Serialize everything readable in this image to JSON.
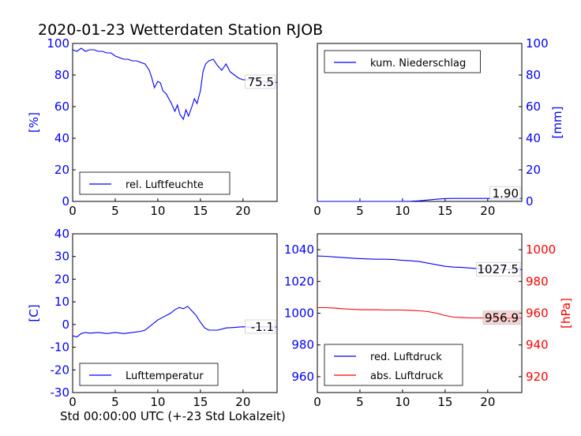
{
  "figure": {
    "title": "2020-01-23 Wetterdaten Station RJOB",
    "xlabel": "Std 00:00:00 UTC (+-23 Std Lokalzeit)"
  },
  "colors": {
    "blue": "#0000ff",
    "red": "#ff0000",
    "black": "#000000"
  },
  "chart_data": [
    {
      "type": "line",
      "panel": "top-left",
      "ylabel": "[%]",
      "xlim": [
        0,
        24
      ],
      "ylim": [
        0,
        100
      ],
      "xticks": [
        0,
        5,
        10,
        15,
        20
      ],
      "yticks": [
        0,
        20,
        40,
        60,
        80,
        100
      ],
      "legend": "bottom-left",
      "last_value": "75.5",
      "series": [
        {
          "name": "rel. Luftfeuchte",
          "color": "#0000ff",
          "x": [
            0,
            0.5,
            1,
            1.5,
            2,
            2.5,
            3,
            3.5,
            4,
            4.5,
            5,
            5.5,
            6,
            6.5,
            7,
            7.5,
            8,
            8.5,
            9,
            9.3,
            9.6,
            10,
            10.3,
            10.6,
            11,
            11.3,
            11.6,
            12,
            12.3,
            12.6,
            13,
            13.3,
            13.6,
            14,
            14.3,
            14.6,
            15,
            15.3,
            15.6,
            16,
            16.5,
            17,
            17.5,
            18,
            18.5,
            19,
            19.5,
            20,
            20.5,
            21,
            21.5,
            22,
            22.5,
            23,
            23.5,
            24
          ],
          "y": [
            96,
            95,
            97,
            95,
            96,
            96,
            95,
            95,
            94,
            94,
            92,
            91,
            90,
            90,
            89,
            89,
            88,
            87,
            83,
            78,
            72,
            76,
            75,
            70,
            68,
            65,
            62,
            57,
            61,
            55,
            52,
            58,
            54,
            60,
            65,
            62,
            70,
            82,
            87,
            89,
            90,
            86,
            83,
            87,
            82,
            80,
            78,
            77,
            77,
            77,
            78,
            76,
            76,
            75,
            75,
            75.5
          ]
        }
      ]
    },
    {
      "type": "line",
      "panel": "top-right",
      "ylabel": "[mm]",
      "y_axis_side": "right",
      "xlim": [
        0,
        24
      ],
      "ylim": [
        0,
        100
      ],
      "xticks": [
        0,
        5,
        10,
        15,
        20
      ],
      "yticks": [
        0,
        20,
        40,
        60,
        80,
        100
      ],
      "legend": "top-left",
      "last_value": "1.90",
      "series": [
        {
          "name": "kum. Niederschlag",
          "color": "#0000ff",
          "x": [
            0,
            10,
            11,
            12,
            13,
            14,
            15,
            16,
            20,
            24
          ],
          "y": [
            0,
            0,
            0.1,
            0.4,
            0.9,
            1.4,
            1.8,
            1.9,
            1.9,
            1.9
          ]
        }
      ]
    },
    {
      "type": "line",
      "panel": "bottom-left",
      "ylabel": "[C]",
      "xlim": [
        0,
        24
      ],
      "ylim": [
        -30,
        40
      ],
      "xticks": [
        0,
        5,
        10,
        15,
        20
      ],
      "yticks": [
        -30,
        -20,
        -10,
        0,
        10,
        20,
        30,
        40
      ],
      "legend": "bottom-left",
      "last_value": "-1.1",
      "series": [
        {
          "name": "Lufttemperatur",
          "color": "#0000ff",
          "x": [
            0,
            0.5,
            1,
            1.5,
            2,
            3,
            4,
            5,
            6,
            7,
            8,
            8.5,
            9,
            9.5,
            10,
            10.5,
            11,
            11.5,
            12,
            12.5,
            13,
            13.5,
            14,
            14.5,
            15,
            15.5,
            16,
            17,
            18,
            19,
            20,
            21,
            22,
            23,
            24
          ],
          "y": [
            -5,
            -5.5,
            -4,
            -3.5,
            -3.8,
            -3.5,
            -4,
            -3.5,
            -4,
            -3.5,
            -3,
            -2.5,
            -1,
            0.5,
            2,
            3,
            4,
            5,
            6.5,
            7.5,
            7,
            8,
            6,
            4,
            1,
            -1.5,
            -2.5,
            -2.5,
            -1.5,
            -1.3,
            -1,
            -1.2,
            -1,
            -1.1,
            -1.1
          ]
        }
      ]
    },
    {
      "type": "line",
      "panel": "bottom-right",
      "ylabel": "[hPa]",
      "xlim": [
        0,
        24
      ],
      "ylim_left": [
        950,
        1050
      ],
      "ylim_right": [
        910,
        1010
      ],
      "xticks": [
        0,
        5,
        10,
        15,
        20
      ],
      "yticks_left": [
        960,
        980,
        1000,
        1020,
        1040
      ],
      "yticks_right": [
        920,
        940,
        960,
        980,
        1000
      ],
      "legend": "bottom-left",
      "series": [
        {
          "name": "red. Luftdruck",
          "color": "#0000ff",
          "axis": "left",
          "last_value": "1027.5",
          "x": [
            0,
            1,
            2,
            3,
            4,
            5,
            6,
            7,
            8,
            9,
            10,
            11,
            12,
            13,
            14,
            15,
            16,
            17,
            18,
            19,
            20,
            21,
            22,
            23,
            24
          ],
          "y": [
            1036,
            1035.8,
            1035.4,
            1035,
            1034.7,
            1034.4,
            1034.2,
            1034,
            1034,
            1033.8,
            1033.3,
            1033,
            1032.5,
            1031.5,
            1030.5,
            1029.5,
            1029,
            1028.8,
            1028.4,
            1028,
            1027.8,
            1027.6,
            1027.5,
            1027.5,
            1027.5
          ]
        },
        {
          "name": "abs. Luftdruck",
          "color": "#ff0000",
          "axis": "right",
          "last_value": "956.9",
          "x": [
            0,
            1,
            2,
            3,
            4,
            5,
            6,
            7,
            8,
            9,
            10,
            11,
            12,
            13,
            14,
            15,
            16,
            17,
            18,
            19,
            20,
            21,
            22,
            23,
            24
          ],
          "y": [
            963.5,
            963.5,
            963.2,
            962.8,
            962.5,
            962.2,
            962.2,
            962.2,
            962,
            962,
            962,
            961.8,
            961.5,
            961,
            960,
            958.5,
            957.5,
            957.2,
            957,
            957,
            957,
            956.9,
            956.9,
            956.9,
            956.9
          ]
        }
      ]
    }
  ]
}
